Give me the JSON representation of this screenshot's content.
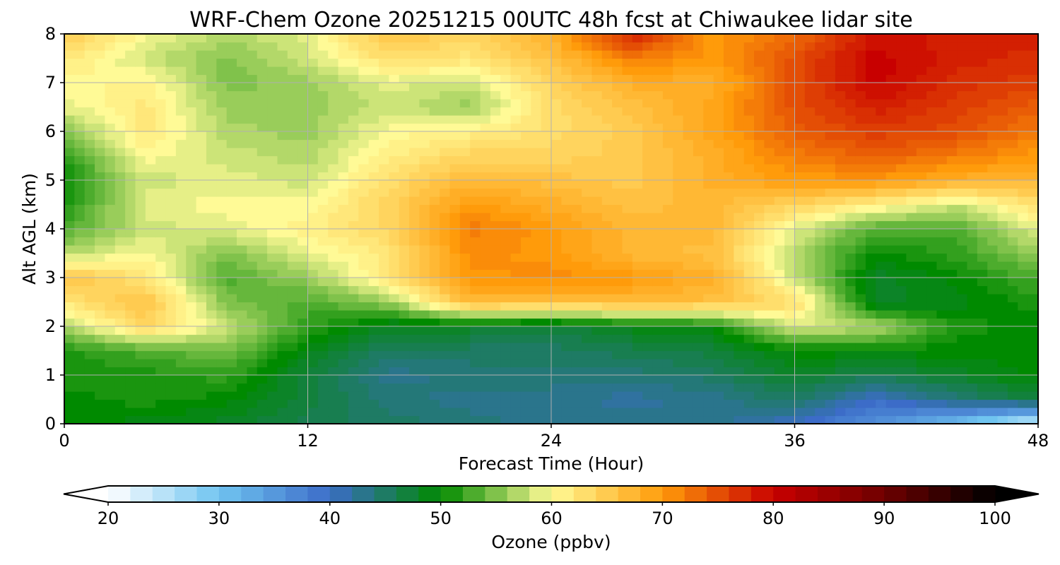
{
  "chart_data": {
    "type": "heatmap",
    "title": "WRF-Chem Ozone  20251215 00UTC 48h fcst at Chiwaukee lidar site",
    "xlabel": "Forecast Time (Hour)",
    "ylabel": "Alt AGL (km)",
    "xlim": [
      0,
      48
    ],
    "ylim": [
      0,
      8
    ],
    "x_ticks": [
      0,
      12,
      24,
      36,
      48
    ],
    "y_ticks": [
      0,
      1,
      2,
      3,
      4,
      5,
      6,
      7,
      8
    ],
    "grid": true,
    "z_unit_label": "Ozone  (ppbv)",
    "z_range": [
      20,
      100
    ],
    "colorbar_ticks": [
      20,
      30,
      40,
      50,
      60,
      70,
      80,
      90,
      100
    ],
    "colorbar_extend": "both",
    "x_hours": [
      0,
      4,
      8,
      12,
      16,
      20,
      24,
      28,
      32,
      36,
      40,
      44,
      48
    ],
    "y_km": [
      0,
      0.5,
      1,
      1.5,
      2,
      2.5,
      3,
      3.5,
      4,
      4.5,
      5,
      5.5,
      6,
      6.5,
      7,
      7.5,
      8
    ],
    "z_ppbv": [
      [
        50,
        49,
        48,
        46,
        45,
        44,
        43,
        43,
        43,
        40,
        36,
        30,
        22
      ],
      [
        50,
        51,
        50,
        47,
        44,
        43,
        43,
        42,
        43,
        45,
        40,
        44,
        47
      ],
      [
        51,
        51,
        52,
        47,
        43,
        44,
        44,
        44,
        45,
        48,
        46,
        48,
        50
      ],
      [
        51,
        53,
        55,
        49,
        45,
        45,
        45,
        46,
        47,
        50,
        50,
        50,
        50
      ],
      [
        57,
        64,
        58,
        52,
        48,
        48,
        47,
        49,
        50,
        59,
        57,
        51,
        50
      ],
      [
        62,
        66,
        55,
        53,
        56,
        67,
        66,
        67,
        66,
        63,
        48,
        49,
        51
      ],
      [
        66,
        62,
        53,
        56,
        62,
        70,
        71,
        70,
        68,
        58,
        48,
        50,
        53
      ],
      [
        57,
        60,
        55,
        59,
        62,
        71,
        70,
        67,
        66,
        57,
        50,
        52,
        56
      ],
      [
        53,
        58,
        59,
        61,
        64,
        72,
        70,
        67,
        67,
        59,
        53,
        53,
        59
      ],
      [
        51,
        59,
        60,
        60,
        64,
        70,
        68,
        66,
        67,
        64,
        61,
        58,
        63
      ],
      [
        50,
        58,
        59,
        58,
        63,
        67,
        66,
        65,
        68,
        70,
        70,
        68,
        67
      ],
      [
        52,
        60,
        58,
        57,
        61,
        64,
        64,
        65,
        68,
        72,
        74,
        72,
        70
      ],
      [
        55,
        62,
        57,
        56,
        60,
        61,
        63,
        65,
        69,
        74,
        76,
        75,
        72
      ],
      [
        59,
        62,
        56,
        56,
        58,
        56,
        63,
        66,
        69,
        75,
        78,
        76,
        74
      ],
      [
        60,
        61,
        55,
        56,
        59,
        58,
        64,
        68,
        68,
        75,
        80,
        77,
        76
      ],
      [
        62,
        58,
        55,
        58,
        63,
        62,
        66,
        72,
        70,
        75,
        80,
        78,
        77
      ],
      [
        65,
        60,
        57,
        59,
        66,
        64,
        68,
        78,
        70,
        73,
        79,
        78,
        78
      ]
    ]
  }
}
